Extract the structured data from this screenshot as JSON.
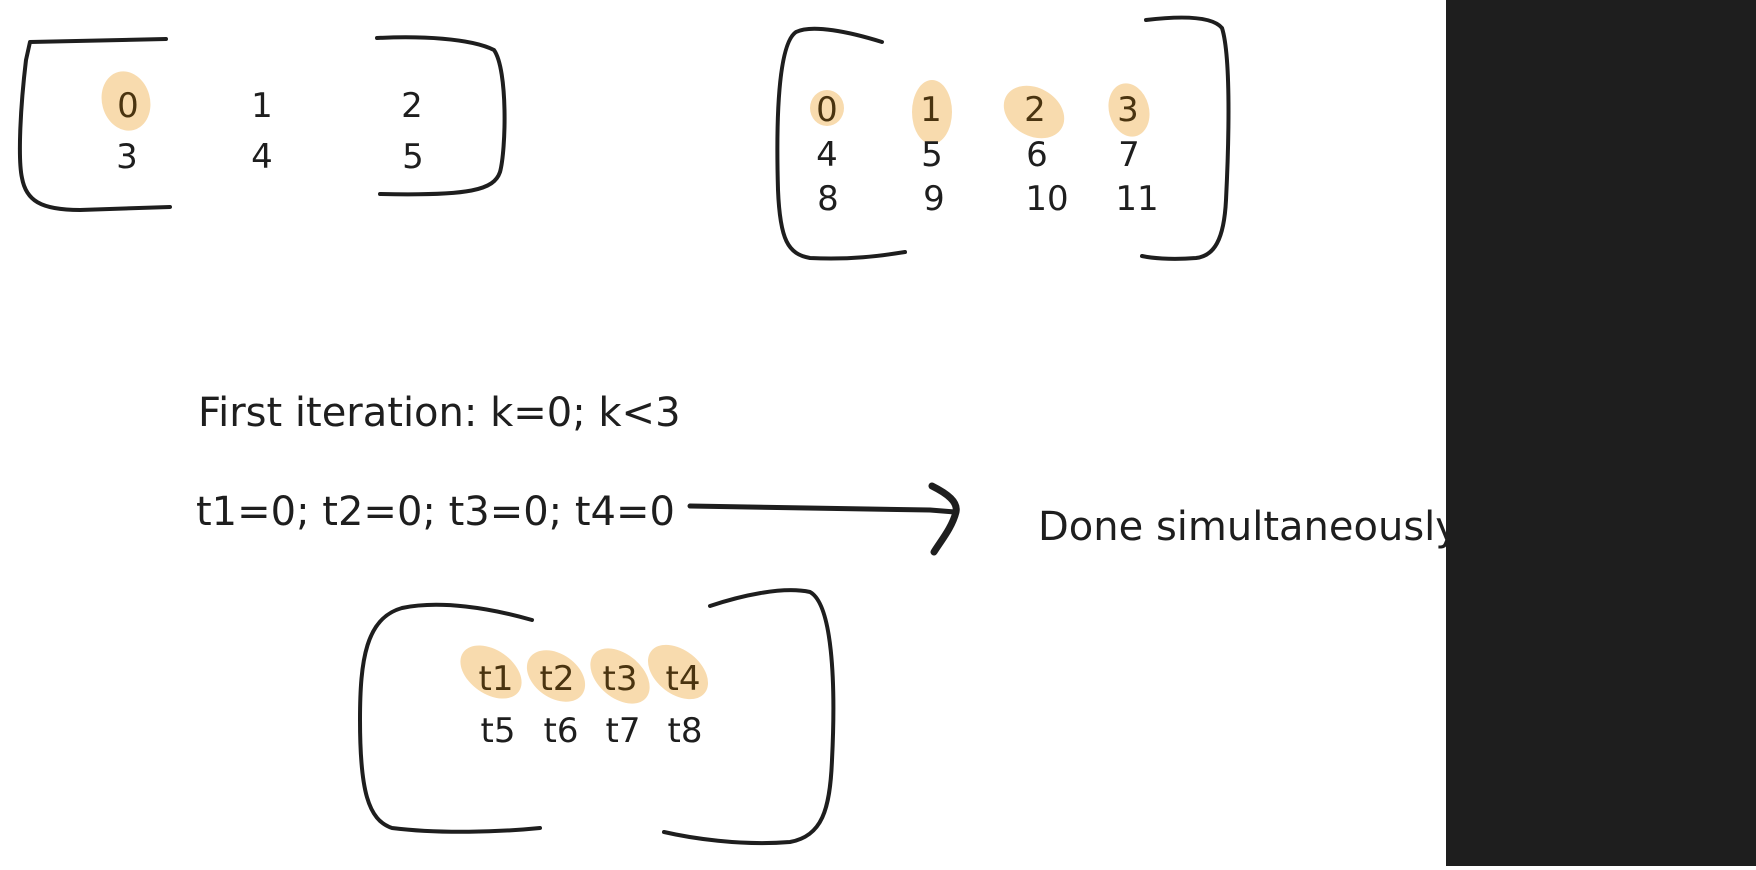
{
  "matrix_a": {
    "rows": [
      [
        "0",
        "1",
        "2"
      ],
      [
        "3",
        "4",
        "5"
      ]
    ],
    "highlighted": [
      "0"
    ]
  },
  "matrix_b": {
    "rows": [
      [
        "0",
        "1",
        "2",
        "3"
      ],
      [
        "4",
        "5",
        "6",
        "7"
      ],
      [
        "8",
        "9",
        "10",
        "11"
      ]
    ],
    "highlighted": [
      "0",
      "1",
      "2",
      "3"
    ]
  },
  "iteration_label": "First iteration: k=0; k<3",
  "thread_assignments": "t1=0; t2=0; t3=0; t4=0",
  "result_label": "Done simultaneously",
  "thread_matrix": {
    "rows": [
      [
        "t1",
        "t2",
        "t3",
        "t4"
      ],
      [
        "t5",
        "t6",
        "t7",
        "t8"
      ]
    ],
    "highlighted": [
      "t1",
      "t2",
      "t3",
      "t4"
    ]
  },
  "colors": {
    "highlight": "#f6cf93",
    "stroke": "#1e1e1e",
    "side_panel": "#1e1e1e"
  }
}
